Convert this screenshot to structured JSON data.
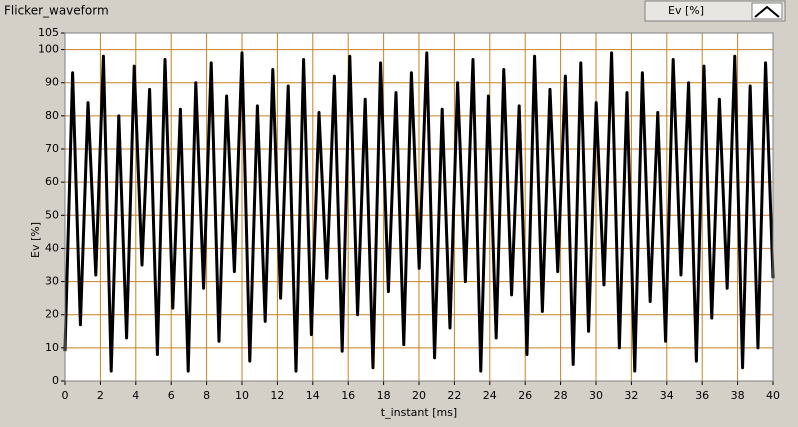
{
  "chart_data": {
    "type": "line",
    "title": "Flicker_waveform",
    "xlabel": "t_instant [ms]",
    "ylabel": "Ev [%]",
    "xlim": [
      0,
      40
    ],
    "ylim": [
      0,
      105
    ],
    "xticks": [
      0,
      2,
      4,
      6,
      8,
      10,
      12,
      14,
      16,
      18,
      20,
      22,
      24,
      26,
      28,
      30,
      32,
      34,
      36,
      38,
      40
    ],
    "yticks": [
      0,
      10,
      20,
      30,
      40,
      50,
      60,
      70,
      80,
      90,
      100,
      105
    ],
    "grid": true,
    "grid_color": "#c8821e",
    "x": [
      0,
      0.43,
      0.87,
      1.3,
      1.74,
      2.17,
      2.61,
      3.04,
      3.48,
      3.91,
      4.35,
      4.78,
      5.22,
      5.65,
      6.09,
      6.52,
      6.96,
      7.39,
      7.83,
      8.26,
      8.7,
      9.13,
      9.57,
      10,
      10.44,
      10.87,
      11.31,
      11.74,
      12.18,
      12.61,
      13.05,
      13.48,
      13.92,
      14.35,
      14.79,
      15.22,
      15.66,
      16.09,
      16.53,
      16.96,
      17.4,
      17.83,
      18.27,
      18.7,
      19.14,
      19.57,
      20.01,
      20.44,
      20.88,
      21.31,
      21.75,
      22.18,
      22.62,
      23.05,
      23.49,
      23.92,
      24.36,
      24.79,
      25.23,
      25.66,
      26.1,
      26.53,
      26.97,
      27.4,
      27.84,
      28.27,
      28.71,
      29.14,
      29.58,
      30.01,
      30.45,
      30.88,
      31.32,
      31.75,
      32.19,
      32.62,
      33.06,
      33.49,
      33.93,
      34.36,
      34.8,
      35.23,
      35.67,
      36.1,
      36.54,
      36.97,
      37.41,
      37.84,
      38.28,
      38.71,
      39.15,
      39.58,
      40
    ],
    "series": [
      {
        "name": "Ev [%]",
        "color": "#000000",
        "values": [
          9,
          93,
          17,
          84,
          32,
          98,
          3,
          80,
          13,
          95,
          35,
          88,
          8,
          97,
          22,
          82,
          3,
          90,
          28,
          96,
          12,
          86,
          33,
          99,
          6,
          83,
          18,
          94,
          25,
          89,
          3,
          97,
          14,
          81,
          31,
          92,
          9,
          98,
          20,
          85,
          4,
          96,
          27,
          87,
          11,
          93,
          34,
          99,
          7,
          82,
          16,
          90,
          30,
          97,
          3,
          86,
          13,
          94,
          26,
          83,
          8,
          98,
          21,
          88,
          33,
          92,
          5,
          96,
          15,
          84,
          29,
          99,
          10,
          87,
          3,
          93,
          24,
          81,
          12,
          97,
          32,
          90,
          6,
          95,
          19,
          85,
          28,
          98,
          4,
          89,
          10,
          96,
          31
        ]
      }
    ]
  }
}
